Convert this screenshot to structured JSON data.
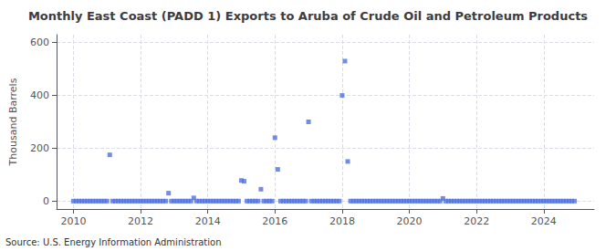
{
  "chart_data": {
    "type": "scatter",
    "title": "Monthly East Coast (PADD 1) Exports to Aruba of Crude Oil and Petroleum Products",
    "ylabel": "Thousand Barrels",
    "annotation": "Source: U.S. Energy Information Administration",
    "marker": "square",
    "grid": true,
    "xlim": [
      2009.5,
      2025.5
    ],
    "xticks": [
      2010,
      2012,
      2014,
      2016,
      2018,
      2020,
      2022,
      2024
    ],
    "ylim": [
      -30,
      630
    ],
    "yticks": [
      0,
      200,
      400,
      600
    ],
    "x": [
      2010.0,
      2010.083,
      2010.167,
      2010.25,
      2010.333,
      2010.417,
      2010.5,
      2010.583,
      2010.667,
      2010.75,
      2010.833,
      2010.917,
      2011.0,
      2011.083,
      2011.167,
      2011.25,
      2011.333,
      2011.417,
      2011.5,
      2011.583,
      2011.667,
      2011.75,
      2011.833,
      2011.917,
      2012.0,
      2012.083,
      2012.167,
      2012.25,
      2012.333,
      2012.417,
      2012.5,
      2012.583,
      2012.667,
      2012.75,
      2012.833,
      2012.917,
      2013.0,
      2013.083,
      2013.167,
      2013.25,
      2013.333,
      2013.417,
      2013.5,
      2013.583,
      2013.667,
      2013.75,
      2013.833,
      2013.917,
      2014.0,
      2014.083,
      2014.167,
      2014.25,
      2014.333,
      2014.417,
      2014.5,
      2014.583,
      2014.667,
      2014.75,
      2014.833,
      2014.917,
      2015.0,
      2015.083,
      2015.167,
      2015.25,
      2015.333,
      2015.417,
      2015.5,
      2015.583,
      2015.667,
      2015.75,
      2015.833,
      2015.917,
      2016.0,
      2016.083,
      2016.167,
      2016.25,
      2016.333,
      2016.417,
      2016.5,
      2016.583,
      2016.667,
      2016.75,
      2016.833,
      2016.917,
      2017.0,
      2017.083,
      2017.167,
      2017.25,
      2017.333,
      2017.417,
      2017.5,
      2017.583,
      2017.667,
      2017.75,
      2017.833,
      2017.917,
      2018.0,
      2018.083,
      2018.167,
      2018.25,
      2018.333,
      2018.417,
      2018.5,
      2018.583,
      2018.667,
      2018.75,
      2018.833,
      2018.917,
      2019.0,
      2019.083,
      2019.167,
      2019.25,
      2019.333,
      2019.417,
      2019.5,
      2019.583,
      2019.667,
      2019.75,
      2019.833,
      2019.917,
      2020.0,
      2020.083,
      2020.167,
      2020.25,
      2020.333,
      2020.417,
      2020.5,
      2020.583,
      2020.667,
      2020.75,
      2020.833,
      2020.917,
      2021.0,
      2021.083,
      2021.167,
      2021.25,
      2021.333,
      2021.417,
      2021.5,
      2021.583,
      2021.667,
      2021.75,
      2021.833,
      2021.917,
      2022.0,
      2022.083,
      2022.167,
      2022.25,
      2022.333,
      2022.417,
      2022.5,
      2022.583,
      2022.667,
      2022.75,
      2022.833,
      2022.917,
      2023.0,
      2023.083,
      2023.167,
      2023.25,
      2023.333,
      2023.417,
      2023.5,
      2023.583,
      2023.667,
      2023.75,
      2023.833,
      2023.917,
      2024.0,
      2024.083,
      2024.167,
      2024.25,
      2024.333,
      2024.417,
      2024.5,
      2024.583,
      2024.667,
      2024.75,
      2024.833,
      2024.917
    ],
    "values": [
      0,
      0,
      0,
      0,
      0,
      0,
      0,
      0,
      0,
      0,
      0,
      0,
      0,
      175,
      0,
      0,
      0,
      0,
      0,
      0,
      0,
      0,
      0,
      0,
      0,
      0,
      0,
      0,
      0,
      0,
      0,
      0,
      0,
      0,
      30,
      0,
      0,
      0,
      0,
      0,
      0,
      0,
      0,
      12,
      0,
      0,
      0,
      0,
      0,
      0,
      0,
      0,
      0,
      0,
      0,
      0,
      0,
      0,
      0,
      0,
      78,
      75,
      0,
      0,
      0,
      0,
      0,
      45,
      0,
      0,
      0,
      0,
      240,
      120,
      0,
      0,
      0,
      0,
      0,
      0,
      0,
      0,
      0,
      0,
      300,
      0,
      0,
      0,
      0,
      0,
      0,
      0,
      0,
      0,
      0,
      0,
      400,
      530,
      150,
      0,
      0,
      0,
      0,
      0,
      0,
      0,
      0,
      0,
      0,
      0,
      0,
      0,
      0,
      0,
      0,
      0,
      0,
      0,
      0,
      0,
      0,
      0,
      0,
      0,
      0,
      0,
      0,
      0,
      0,
      0,
      0,
      0,
      10,
      0,
      0,
      0,
      0,
      0,
      0,
      0,
      0,
      0,
      0,
      0,
      0,
      0,
      0,
      0,
      0,
      0,
      0,
      0,
      0,
      0,
      0,
      0,
      0,
      0,
      0,
      0,
      0,
      0,
      0,
      0,
      0,
      0,
      0,
      0,
      0,
      0,
      0,
      0,
      0,
      0,
      0,
      0,
      0,
      0,
      0,
      0
    ]
  }
}
